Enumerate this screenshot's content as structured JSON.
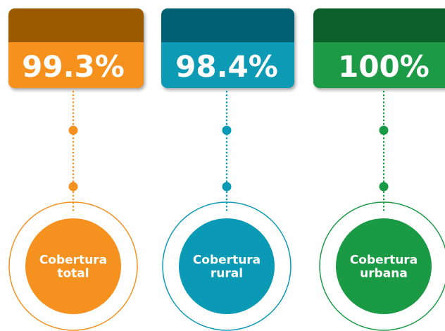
{
  "items": [
    {
      "value": "99.3%",
      "caption": [
        "Cobertura",
        "total"
      ]
    },
    {
      "value": "98.4%",
      "caption": [
        "Cobertura",
        "rural"
      ]
    },
    {
      "value": "100%",
      "caption": [
        "Cobertura",
        "urbana"
      ]
    }
  ]
}
